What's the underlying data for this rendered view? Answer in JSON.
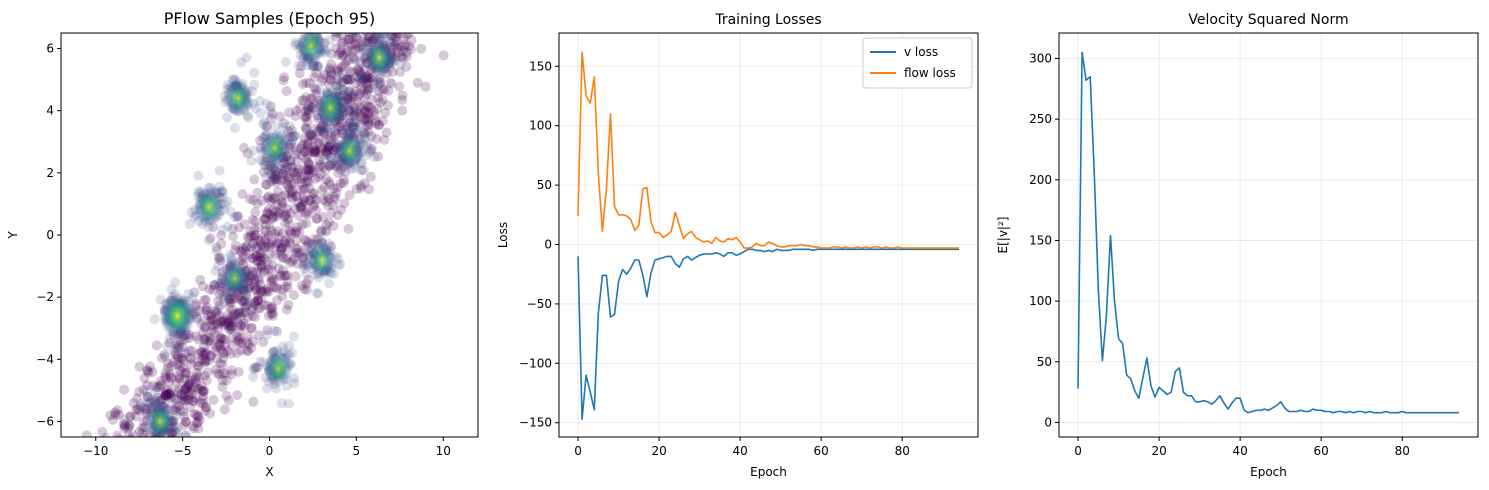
{
  "chart_data": [
    {
      "type": "scatter",
      "title": "PFlow Samples (Epoch 95)",
      "xlabel": "X",
      "ylabel": "Y",
      "xlim": [
        -12,
        12
      ],
      "ylim": [
        -6.5,
        6.5
      ],
      "xticks": [
        -10,
        -5,
        0,
        5,
        10
      ],
      "yticks": [
        -6,
        -4,
        -2,
        0,
        2,
        4,
        6
      ],
      "grid": false,
      "colormap": "viridis",
      "point_color": "#440154",
      "band": [
        [
          -7.0,
          -6.5
        ],
        [
          0.5,
          0
        ],
        [
          6.2,
          6.5
        ]
      ],
      "clusters": [
        {
          "x": -6.3,
          "y": -6.0,
          "density": 0.55
        },
        {
          "x": -5.3,
          "y": -2.6,
          "density": 1.0
        },
        {
          "x": -3.5,
          "y": 0.9,
          "density": 0.6
        },
        {
          "x": 0.5,
          "y": -4.3,
          "density": 0.55
        },
        {
          "x": -1.8,
          "y": 4.4,
          "density": 0.55
        },
        {
          "x": 0.3,
          "y": 2.8,
          "density": 0.5
        },
        {
          "x": 2.4,
          "y": 6.1,
          "density": 0.5
        },
        {
          "x": 3.5,
          "y": 4.1,
          "density": 0.6
        },
        {
          "x": 4.6,
          "y": 2.7,
          "density": 0.5
        },
        {
          "x": 6.3,
          "y": 5.7,
          "density": 0.55
        },
        {
          "x": 3.0,
          "y": -0.8,
          "density": 0.45
        },
        {
          "x": -2.0,
          "y": -1.4,
          "density": 0.35
        }
      ]
    },
    {
      "type": "line",
      "title": "Training Losses",
      "xlabel": "Epoch",
      "ylabel": "Loss",
      "xlim": [
        -4.7,
        98.7
      ],
      "ylim": [
        -162,
        178
      ],
      "xticks": [
        0,
        20,
        40,
        60,
        80
      ],
      "yticks": [
        -150,
        -100,
        -50,
        0,
        50,
        100,
        150
      ],
      "grid": true,
      "legend": "top-right",
      "series": [
        {
          "name": "v loss",
          "color": "#1f77b4",
          "values": [
            -10,
            -147,
            -110,
            -124,
            -139,
            -58,
            -26,
            -26,
            -61,
            -59,
            -31,
            -21,
            -25,
            -20,
            -13,
            -13,
            -26,
            -44,
            -24,
            -13,
            -12,
            -11,
            -10,
            -10,
            -16,
            -19,
            -12,
            -10,
            -13,
            -11,
            -9,
            -8,
            -8,
            -8,
            -7,
            -8,
            -10,
            -7,
            -7,
            -9,
            -8,
            -6,
            -4,
            -4,
            -5,
            -5,
            -6,
            -5,
            -6,
            -4,
            -5,
            -5,
            -5,
            -4,
            -4,
            -4,
            -4,
            -4,
            -5,
            -4,
            -4,
            -4,
            -4,
            -4,
            -4,
            -4,
            -4,
            -4,
            -4,
            -4,
            -4,
            -4,
            -4,
            -4,
            -4,
            -4,
            -4,
            -4,
            -4,
            -4,
            -4,
            -4,
            -4,
            -4,
            -4,
            -4,
            -4,
            -4,
            -4,
            -4,
            -4,
            -4,
            -4,
            -4,
            -4
          ]
        },
        {
          "name": "flow loss",
          "color": "#ff7f0e",
          "values": [
            24,
            162,
            125,
            119,
            141,
            61,
            11,
            47,
            110,
            32,
            25,
            25,
            24,
            21,
            12,
            16,
            47,
            48,
            19,
            10,
            10,
            6,
            8,
            11,
            27,
            16,
            5,
            9,
            11,
            6,
            4,
            2,
            3,
            1,
            6,
            3,
            2,
            5,
            4,
            6,
            2,
            -3,
            -3,
            -2,
            1,
            -1,
            -1,
            2,
            1,
            -1,
            -2,
            -2,
            -1,
            -1,
            -1,
            0,
            -1,
            -1,
            -2,
            -2,
            -3,
            -3,
            -3,
            -2,
            -2,
            -3,
            -2,
            -3,
            -3,
            -2,
            -3,
            -2,
            -3,
            -2,
            -2,
            -3,
            -2,
            -3,
            -3,
            -2,
            -3,
            -3,
            -3,
            -3,
            -3,
            -3,
            -3,
            -3,
            -3,
            -3,
            -3,
            -3,
            -3,
            -3,
            -3
          ]
        }
      ]
    },
    {
      "type": "line",
      "title": "Velocity Squared Norm",
      "xlabel": "Epoch",
      "ylabel": "E[|v|²]",
      "xlim": [
        -4.7,
        98.7
      ],
      "ylim": [
        -12,
        321
      ],
      "xticks": [
        0,
        20,
        40,
        60,
        80
      ],
      "yticks": [
        0,
        50,
        100,
        150,
        200,
        250,
        300
      ],
      "grid": true,
      "series": [
        {
          "color": "#1f77b4",
          "values": [
            28,
            305,
            282,
            285,
            205,
            110,
            51,
            88,
            154,
            100,
            69,
            65,
            39,
            36,
            26,
            20,
            37,
            53,
            30,
            21,
            29,
            26,
            23,
            25,
            42,
            45,
            25,
            22,
            22,
            17,
            17,
            18,
            17,
            15,
            18,
            22,
            16,
            11,
            16,
            20,
            20,
            10,
            8,
            9,
            10,
            10,
            11,
            10,
            12,
            14,
            17,
            12,
            9,
            9,
            9,
            10,
            9,
            9,
            11,
            10,
            10,
            9,
            9,
            8,
            9,
            9,
            8,
            9,
            8,
            9,
            9,
            8,
            9,
            8,
            8,
            8,
            9,
            8,
            8,
            8,
            9,
            8,
            8,
            8,
            8,
            8,
            8,
            8,
            8,
            8,
            8,
            8,
            8,
            8,
            8
          ]
        }
      ]
    }
  ]
}
